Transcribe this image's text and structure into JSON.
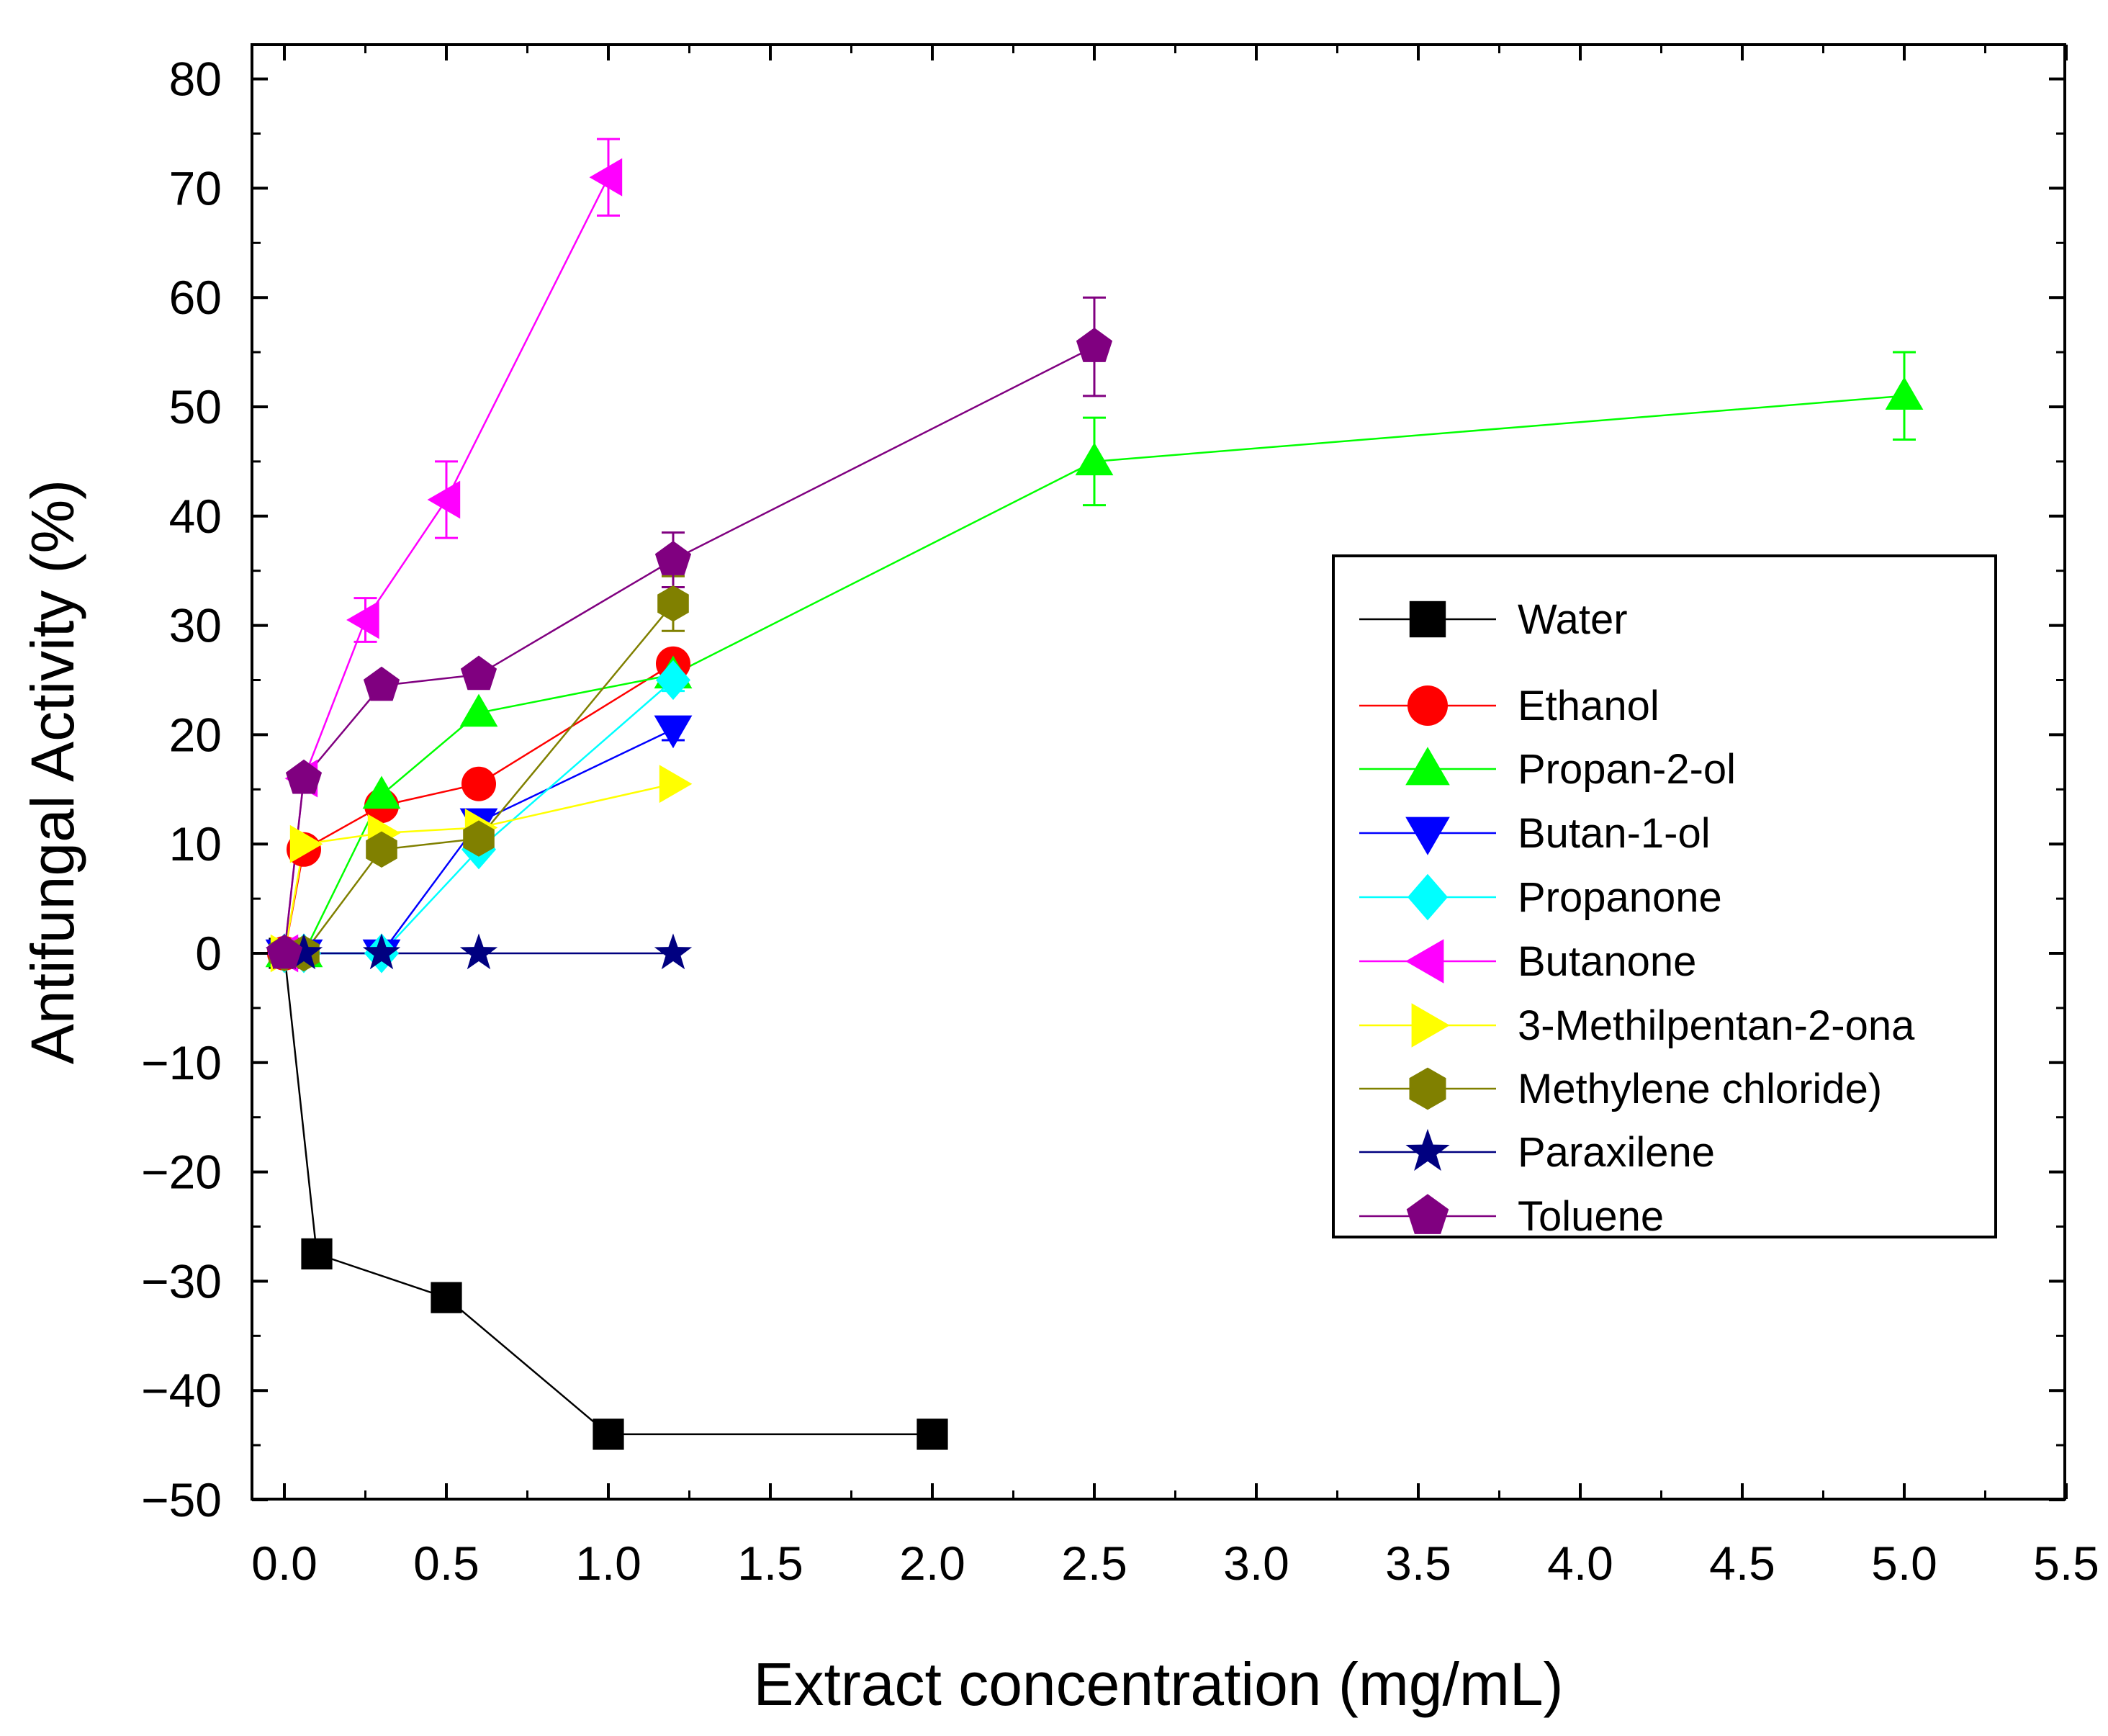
{
  "chart_data": {
    "type": "line",
    "title": "",
    "xlabel": "Extract concentration (mg/mL)",
    "ylabel": "Antifungal Activity (%)",
    "xlim": [
      -0.1,
      5.5
    ],
    "ylim": [
      -50,
      82
    ],
    "x_ticks": [
      0.0,
      0.5,
      1.0,
      1.5,
      2.0,
      2.5,
      3.0,
      3.5,
      4.0,
      4.5,
      5.0,
      5.5
    ],
    "x_tick_labels": [
      "0.0",
      "0.5",
      "1.0",
      "1.5",
      "2.0",
      "2.5",
      "3.0",
      "3.5",
      "4.0",
      "4.5",
      "5.0",
      "5.5"
    ],
    "y_ticks": [
      -50,
      -40,
      -30,
      -20,
      -10,
      0,
      10,
      20,
      30,
      40,
      50,
      60,
      70,
      80
    ],
    "y_tick_labels": [
      "−50",
      "−40",
      "−30",
      "−20",
      "−10",
      "0",
      "10",
      "20",
      "30",
      "40",
      "50",
      "60",
      "70",
      "80"
    ],
    "grid": false,
    "legend_position": "center-right",
    "series": [
      {
        "name": "Water",
        "color": "#000000",
        "marker": "square",
        "x": [
          0,
          0.1,
          0.5,
          1.0,
          2.0
        ],
        "y": [
          0,
          -27.5,
          -31.5,
          -44,
          -44
        ],
        "err": [
          0,
          0,
          0,
          0,
          0
        ]
      },
      {
        "name": "Ethanol",
        "color": "#ff0000",
        "marker": "circle",
        "x": [
          0,
          0.06,
          0.3,
          0.6,
          1.2
        ],
        "y": [
          0,
          9.5,
          13.5,
          15.5,
          26.5
        ],
        "err": [
          0,
          0,
          0,
          0,
          1
        ]
      },
      {
        "name": "Propan-2-ol",
        "color": "#00ff00",
        "marker": "triangle-up",
        "x": [
          0,
          0.06,
          0.3,
          0.6,
          1.2,
          2.5,
          5.0
        ],
        "y": [
          0,
          0,
          14.5,
          22,
          25.5,
          45,
          51
        ],
        "err": [
          0,
          0,
          0,
          0,
          1,
          4,
          4
        ]
      },
      {
        "name": "Butan-1-ol",
        "color": "#0000ff",
        "marker": "triangle-down",
        "x": [
          0,
          0.06,
          0.3,
          0.6,
          1.2
        ],
        "y": [
          0,
          0,
          0,
          12,
          20.5
        ],
        "err": [
          0,
          0,
          0,
          0,
          1
        ]
      },
      {
        "name": "Propanone",
        "color": "#00ffff",
        "marker": "diamond",
        "x": [
          0,
          0.06,
          0.3,
          0.6,
          1.2
        ],
        "y": [
          0,
          0,
          0,
          9.5,
          25
        ],
        "err": [
          0,
          0,
          0,
          0,
          1
        ]
      },
      {
        "name": "Butanone",
        "color": "#ff00ff",
        "marker": "triangle-left",
        "x": [
          0,
          0.06,
          0.25,
          0.5,
          1.0
        ],
        "y": [
          0,
          16,
          30.5,
          41.5,
          71
        ],
        "err": [
          0,
          0,
          2,
          3.5,
          3.5
        ]
      },
      {
        "name": "3-Methilpentan-2-ona",
        "color": "#ffff00",
        "marker": "triangle-right",
        "x": [
          0,
          0.06,
          0.3,
          0.6,
          1.2
        ],
        "y": [
          0,
          10,
          11,
          11.5,
          15.5
        ],
        "err": [
          0,
          0,
          0,
          0,
          0
        ]
      },
      {
        "name": "Methylene chloride)",
        "color": "#808000",
        "marker": "hexagon",
        "x": [
          0,
          0.06,
          0.3,
          0.6,
          1.2
        ],
        "y": [
          0,
          0,
          9.5,
          10.5,
          32
        ],
        "err": [
          0,
          0,
          0,
          0,
          2.5
        ]
      },
      {
        "name": "Paraxilene",
        "color": "#000080",
        "marker": "star",
        "x": [
          0,
          0.06,
          0.3,
          0.6,
          1.2
        ],
        "y": [
          0,
          0,
          0,
          0,
          0
        ],
        "err": [
          0,
          0,
          0,
          0,
          0
        ]
      },
      {
        "name": "Toluene",
        "color": "#800080",
        "marker": "pentagon",
        "x": [
          0,
          0.06,
          0.3,
          0.6,
          1.2,
          2.5
        ],
        "y": [
          0,
          16,
          24.5,
          25.5,
          36,
          55.5
        ],
        "err": [
          0,
          0,
          0,
          0,
          2.5,
          4.5
        ]
      }
    ]
  }
}
